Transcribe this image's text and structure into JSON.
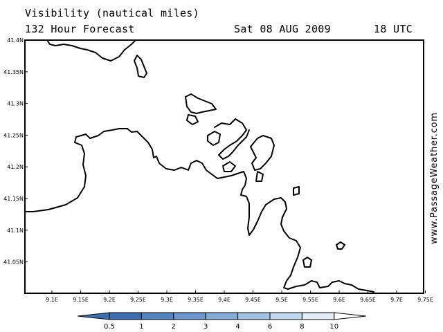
{
  "header": {
    "title": "Visibility (nautical miles)",
    "forecast": "132 Hour Forecast",
    "date": "Sat 08 AUG 2009",
    "time": "18 UTC"
  },
  "watermark": "www.PassageWeather.com",
  "map": {
    "lon_ticks": [
      "9.1E",
      "9.15E",
      "9.2E",
      "9.25E",
      "9.3E",
      "9.35E",
      "9.4E",
      "9.45E",
      "9.5E",
      "9.55E",
      "9.6E",
      "9.65E",
      "9.7E",
      "9.75E"
    ],
    "lat_ticks": [
      "41.4N",
      "41.35N",
      "41.3N",
      "41.25N",
      "41.2N",
      "41.15N",
      "41.1N",
      "41.05N"
    ],
    "land_color": "#ffffff",
    "coast_color": "#000000"
  },
  "colorbar": {
    "labels": [
      "0.5",
      "1",
      "2",
      "3",
      "4",
      "6",
      "8",
      "10"
    ],
    "colors": [
      "#3d6fb0",
      "#5384c0",
      "#6b97cc",
      "#85acd7",
      "#a2c2e2",
      "#c2d8ec",
      "#e1ecf6",
      "#ffffff"
    ]
  }
}
